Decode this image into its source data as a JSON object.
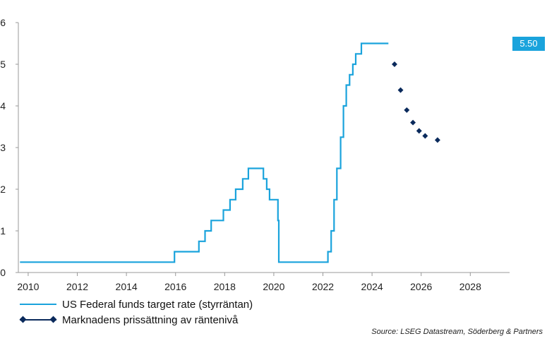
{
  "chart_data": {
    "type": "line",
    "xlim": [
      2009.6,
      2029.6
    ],
    "ylim": [
      0,
      6
    ],
    "x_ticks": [
      "2010",
      "2012",
      "2014",
      "2016",
      "2018",
      "2020",
      "2022",
      "2024",
      "2026",
      "2028"
    ],
    "y_ticks": [
      "0",
      "1",
      "2",
      "3",
      "4",
      "5",
      "6"
    ],
    "grid": false,
    "legend_position": "bottom-left",
    "colors": {
      "fed": "#1aa3dc",
      "market": "#0a2a5c",
      "box": "#1aa3dc"
    },
    "series": [
      {
        "name": "US Federal funds target rate (styrräntan)",
        "style": "step-line",
        "points": [
          [
            "2009-09-01",
            0.25
          ],
          [
            "2015-12-16",
            0.25
          ],
          [
            "2015-12-16",
            0.5
          ],
          [
            "2016-12-14",
            0.5
          ],
          [
            "2016-12-14",
            0.75
          ],
          [
            "2017-03-15",
            0.75
          ],
          [
            "2017-03-15",
            1.0
          ],
          [
            "2017-06-14",
            1.0
          ],
          [
            "2017-06-14",
            1.25
          ],
          [
            "2017-12-13",
            1.25
          ],
          [
            "2017-12-13",
            1.5
          ],
          [
            "2018-03-21",
            1.5
          ],
          [
            "2018-03-21",
            1.75
          ],
          [
            "2018-06-13",
            1.75
          ],
          [
            "2018-06-13",
            2.0
          ],
          [
            "2018-09-26",
            2.0
          ],
          [
            "2018-09-26",
            2.25
          ],
          [
            "2018-12-19",
            2.25
          ],
          [
            "2018-12-19",
            2.5
          ],
          [
            "2019-07-31",
            2.5
          ],
          [
            "2019-07-31",
            2.25
          ],
          [
            "2019-09-18",
            2.25
          ],
          [
            "2019-09-18",
            2.0
          ],
          [
            "2019-10-30",
            2.0
          ],
          [
            "2019-10-30",
            1.75
          ],
          [
            "2020-03-03",
            1.75
          ],
          [
            "2020-03-03",
            1.25
          ],
          [
            "2020-03-15",
            1.25
          ],
          [
            "2020-03-15",
            0.25
          ],
          [
            "2022-03-16",
            0.25
          ],
          [
            "2022-03-16",
            0.5
          ],
          [
            "2022-05-04",
            0.5
          ],
          [
            "2022-05-04",
            1.0
          ],
          [
            "2022-06-15",
            1.0
          ],
          [
            "2022-06-15",
            1.75
          ],
          [
            "2022-07-27",
            1.75
          ],
          [
            "2022-07-27",
            2.5
          ],
          [
            "2022-09-21",
            2.5
          ],
          [
            "2022-09-21",
            3.25
          ],
          [
            "2022-11-02",
            3.25
          ],
          [
            "2022-11-02",
            4.0
          ],
          [
            "2022-12-14",
            4.0
          ],
          [
            "2022-12-14",
            4.5
          ],
          [
            "2023-02-01",
            4.5
          ],
          [
            "2023-02-01",
            4.75
          ],
          [
            "2023-03-22",
            4.75
          ],
          [
            "2023-03-22",
            5.0
          ],
          [
            "2023-05-03",
            5.0
          ],
          [
            "2023-05-03",
            5.25
          ],
          [
            "2023-07-26",
            5.25
          ],
          [
            "2023-07-26",
            5.5
          ],
          [
            "2024-09-01",
            5.5
          ]
        ]
      },
      {
        "name": "Marknadens prissättning av räntenivå",
        "style": "markers",
        "points": [
          [
            "2024-12-01",
            5.0
          ],
          [
            "2025-03-01",
            4.38
          ],
          [
            "2025-06-01",
            3.9
          ],
          [
            "2025-09-01",
            3.6
          ],
          [
            "2025-12-01",
            3.4
          ],
          [
            "2026-03-01",
            3.28
          ],
          [
            "2026-09-01",
            3.18
          ]
        ]
      }
    ],
    "value_label": "5.50",
    "source": "Source: LSEG Datastream, Söderberg & Partners"
  }
}
